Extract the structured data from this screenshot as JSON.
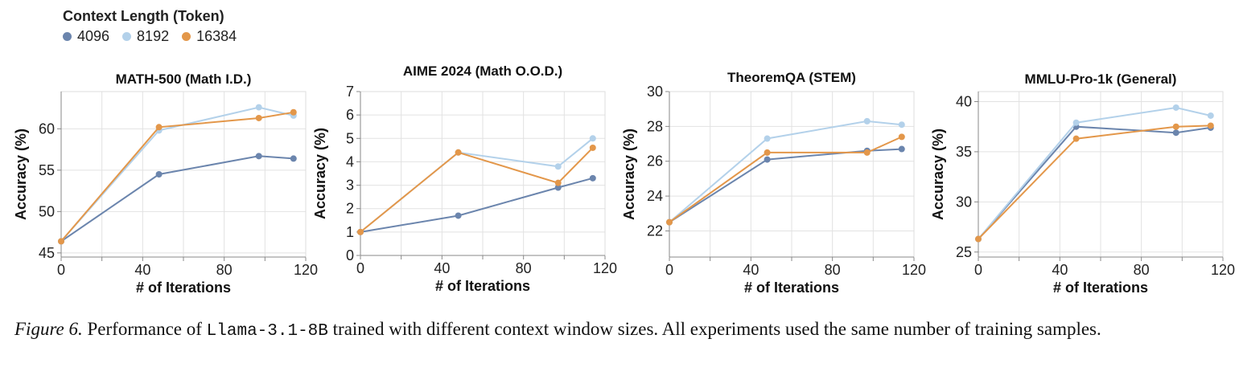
{
  "legend": {
    "title": "Context Length (Token)",
    "items": [
      {
        "label": "4096",
        "color": "#6b85ad"
      },
      {
        "label": "8192",
        "color": "#b3d1ea"
      },
      {
        "label": "16384",
        "color": "#e3974a"
      }
    ]
  },
  "caption": {
    "lead": "Figure 6.",
    "text_before": "Performance of",
    "model": "Llama-3.1-8B",
    "text_after": "trained with different context window sizes.  All experiments used the same number of training samples."
  },
  "chart_data": [
    {
      "type": "line",
      "title": "MATH-500 (Math I.D.)",
      "xlabel": "# of Iterations",
      "ylabel": "Accuracy (%)",
      "xlim": [
        0,
        120
      ],
      "ylim": [
        44.5,
        64.5
      ],
      "xticks": [
        0,
        40,
        80,
        120
      ],
      "yticks": [
        45,
        50,
        55,
        60
      ],
      "x": [
        0,
        48,
        97,
        114
      ],
      "series": [
        {
          "name": "4096",
          "values": [
            46.4,
            54.5,
            56.7,
            56.4
          ]
        },
        {
          "name": "8192",
          "values": [
            46.4,
            59.8,
            62.6,
            61.6
          ]
        },
        {
          "name": "16384",
          "values": [
            46.4,
            60.2,
            61.3,
            62.0
          ]
        }
      ]
    },
    {
      "type": "line",
      "title": "AIME 2024 (Math O.O.D.)",
      "xlabel": "# of Iterations",
      "ylabel": "Accuracy (%)",
      "xlim": [
        0,
        120
      ],
      "ylim": [
        0,
        7
      ],
      "xticks": [
        0,
        40,
        80,
        120
      ],
      "yticks": [
        0,
        1,
        2,
        3,
        4,
        5,
        6,
        7
      ],
      "x": [
        0,
        48,
        97,
        114
      ],
      "series": [
        {
          "name": "4096",
          "values": [
            1.0,
            1.7,
            2.9,
            3.3
          ]
        },
        {
          "name": "8192",
          "values": [
            1.0,
            4.4,
            3.8,
            5.0
          ]
        },
        {
          "name": "16384",
          "values": [
            1.0,
            4.4,
            3.1,
            4.6
          ]
        }
      ]
    },
    {
      "type": "line",
      "title": "TheoremQA (STEM)",
      "xlabel": "# of Iterations",
      "ylabel": "Accuracy (%)",
      "xlim": [
        0,
        120
      ],
      "ylim": [
        20.5,
        30
      ],
      "xticks": [
        0,
        40,
        80,
        120
      ],
      "yticks": [
        22,
        24,
        26,
        28,
        30
      ],
      "x": [
        0,
        48,
        97,
        114
      ],
      "series": [
        {
          "name": "4096",
          "values": [
            22.5,
            26.1,
            26.6,
            26.7
          ]
        },
        {
          "name": "8192",
          "values": [
            22.5,
            27.3,
            28.3,
            28.1
          ]
        },
        {
          "name": "16384",
          "values": [
            22.5,
            26.5,
            26.5,
            27.4
          ]
        }
      ]
    },
    {
      "type": "line",
      "title": "MMLU-Pro-1k (General)",
      "xlabel": "# of Iterations",
      "ylabel": "Accuracy (%)",
      "xlim": [
        0,
        120
      ],
      "ylim": [
        24.5,
        41
      ],
      "xticks": [
        0,
        40,
        80,
        120
      ],
      "yticks": [
        25,
        30,
        35,
        40
      ],
      "x": [
        0,
        48,
        97,
        114
      ],
      "series": [
        {
          "name": "4096",
          "values": [
            26.3,
            37.5,
            36.9,
            37.4
          ]
        },
        {
          "name": "8192",
          "values": [
            26.3,
            37.9,
            39.4,
            38.6
          ]
        },
        {
          "name": "16384",
          "values": [
            26.3,
            36.3,
            37.5,
            37.6
          ]
        }
      ]
    }
  ]
}
